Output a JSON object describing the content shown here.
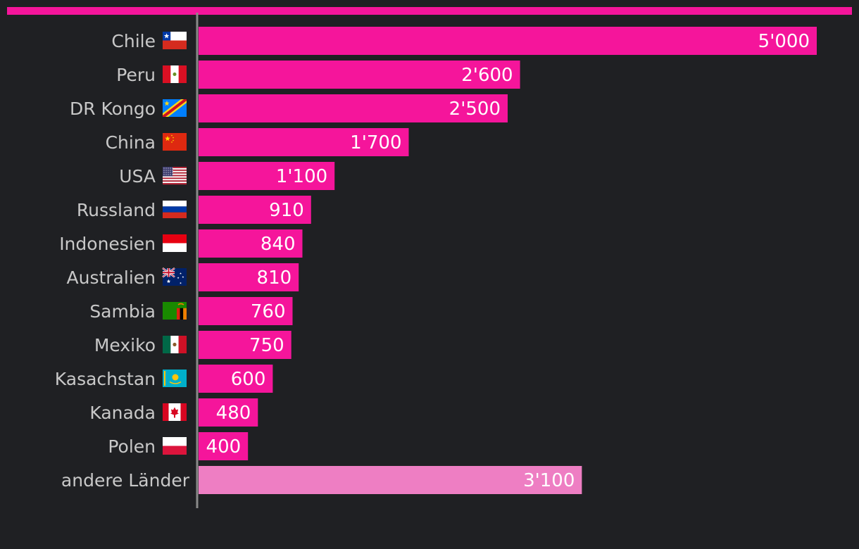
{
  "chart_data": {
    "type": "bar",
    "orientation": "horizontal",
    "categories": [
      "Chile",
      "Peru",
      "DR Kongo",
      "China",
      "USA",
      "Russland",
      "Indonesien",
      "Australien",
      "Sambia",
      "Mexiko",
      "Kasachstan",
      "Kanada",
      "Polen",
      "andere Länder"
    ],
    "values": [
      5000,
      2600,
      2500,
      1700,
      1100,
      910,
      840,
      810,
      760,
      750,
      600,
      480,
      400,
      3100
    ],
    "value_labels": [
      "5'000",
      "2'600",
      "2'500",
      "1'700",
      "1'100",
      "910",
      "840",
      "810",
      "760",
      "750",
      "600",
      "480",
      "400",
      "3'100"
    ],
    "flags": [
      "cl",
      "pe",
      "cd",
      "cn",
      "us",
      "ru",
      "id",
      "au",
      "zm",
      "mx",
      "kz",
      "ca",
      "pl",
      ""
    ],
    "xlim": [
      0,
      5000
    ],
    "title": "",
    "xlabel": "",
    "ylabel": "",
    "grid": false,
    "colors": {
      "background": "#1f2023",
      "bar": "#f5159b",
      "bar_other": "#ee7ec3",
      "accent_line": "#f5159b",
      "axis": "#8a8a8a",
      "label": "#c8c8c8",
      "value": "#ffffff"
    }
  }
}
